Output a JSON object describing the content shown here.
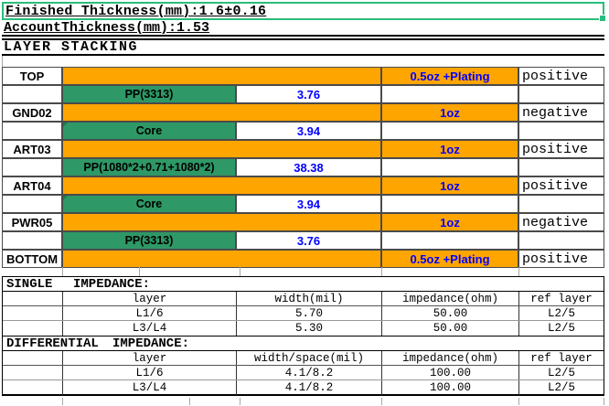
{
  "header": {
    "finished_thickness": "Finished Thickness(mm):1.6±0.16",
    "account_thickness": "AccountThickness(mm):1.53",
    "section_title": "LAYER STACKING"
  },
  "colors": {
    "copper_orange": "#FFA500",
    "dielectric_green": "#2E9966",
    "selection_green": "#29BD7D",
    "value_blue": "#0000FF"
  },
  "stack": {
    "rows": [
      {
        "kind": "copper",
        "name": "TOP",
        "weight": "0.5oz +Plating",
        "polarity": "positive"
      },
      {
        "kind": "dielectric",
        "material": "PP(3313)",
        "thickness": "3.76",
        "marker": false
      },
      {
        "kind": "copper",
        "name": "GND02",
        "weight": "1oz",
        "polarity": "negative"
      },
      {
        "kind": "dielectric",
        "material": "Core",
        "thickness": "3.94",
        "marker": true
      },
      {
        "kind": "copper",
        "name": "ART03",
        "weight": "1oz",
        "polarity": "positive"
      },
      {
        "kind": "dielectric",
        "material": "PP(1080*2+0.71+1080*2)",
        "thickness": "38.38",
        "marker": false
      },
      {
        "kind": "copper",
        "name": "ART04",
        "weight": "1oz",
        "polarity": "positive"
      },
      {
        "kind": "dielectric",
        "material": "Core",
        "thickness": "3.94",
        "marker": true
      },
      {
        "kind": "copper",
        "name": "PWR05",
        "weight": "1oz",
        "polarity": "negative"
      },
      {
        "kind": "dielectric",
        "material": "PP(3313)",
        "thickness": "3.76",
        "marker": false
      },
      {
        "kind": "copper",
        "name": "BOTTOM",
        "weight": "0.5oz +Plating",
        "polarity": "positive"
      }
    ]
  },
  "impedance_tables": [
    {
      "title_word1": "SINGLE",
      "title_word2": "IMPEDANCE:",
      "headers": [
        "layer",
        "width(mil)",
        "impedance(ohm)",
        "ref layer"
      ],
      "rows": [
        [
          "L1/6",
          "5.70",
          "50.00",
          "L2/5"
        ],
        [
          "L3/L4",
          "5.30",
          "50.00",
          "L2/5"
        ]
      ]
    },
    {
      "title_word1": "DIFFERENTIAL",
      "title_word2": "IMPEDANCE:",
      "headers": [
        "layer",
        "width/space(mil)",
        "impedance(ohm)",
        "ref layer"
      ],
      "rows": [
        [
          "L1/6",
          "4.1/8.2",
          "100.00",
          "L2/5"
        ],
        [
          "L3/L4",
          "4.1/8.2",
          "100.00",
          "L2/5"
        ]
      ]
    }
  ]
}
